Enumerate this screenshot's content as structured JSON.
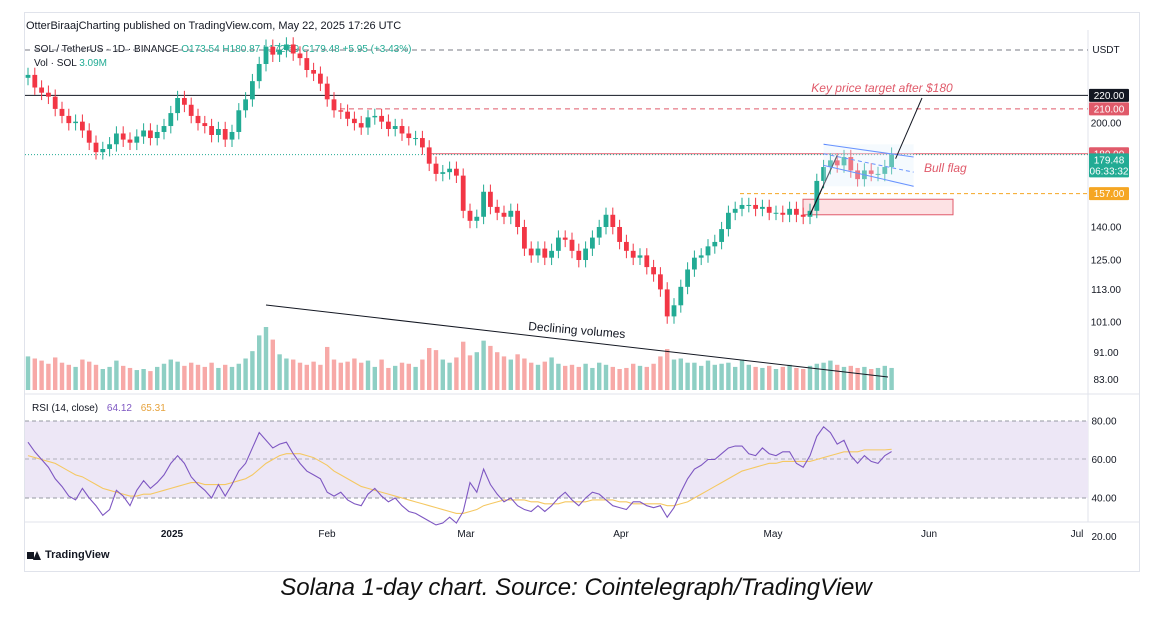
{
  "header": {
    "publisher_line": "OtterBiraajCharting published on TradingView.com, May 22, 2025 17:26 UTC",
    "symbol": "SOL / TetherUS · 1D · BINANCE",
    "ohlc": "O173.54 H180.87 L172.59 C179.48 +5.95 (+3.43%)",
    "vol_label": "Vol · SOL",
    "vol_value": "3.09M",
    "currency": "USDT"
  },
  "colors": {
    "up": "#22ab94",
    "down": "#f23645",
    "vol_up": "#8ecfc4",
    "vol_down": "#f7a9a7",
    "rsi_line": "#7e57c2",
    "rsi_ma": "#f5c862",
    "rsi_band": "#ede7f6",
    "target": "#e05a6a",
    "blue": "#2962ff"
  },
  "chart_data": [
    {
      "type": "candlestick",
      "title": "SOL / TetherUS · 1D · BINANCE",
      "y_axis_ticks": [
        "220.00",
        "210.00",
        "200.00",
        "180.00",
        "157.00",
        "140.00",
        "125.00",
        "113.00",
        "101.00",
        "91.00",
        "83.00"
      ],
      "x_axis_ticks": [
        "2025",
        "Feb",
        "Mar",
        "Apr",
        "May",
        "Jun",
        "Jul"
      ],
      "ylim": [
        80,
        240
      ],
      "y_scale": "log",
      "closes": [
        236,
        226,
        222,
        219,
        210,
        205,
        200,
        201,
        195,
        187,
        181,
        183,
        186,
        193,
        189,
        187,
        191,
        195,
        190,
        194,
        198,
        207,
        218,
        213,
        205,
        200,
        198,
        192,
        196,
        189,
        194,
        209,
        217,
        231,
        245,
        260,
        253,
        257,
        262,
        254,
        250,
        240,
        237,
        229,
        217,
        209,
        208,
        203,
        200,
        197,
        204,
        205,
        201,
        196,
        198,
        193,
        190,
        190,
        184,
        174,
        168,
        169,
        171,
        167,
        148,
        143,
        145,
        158,
        150,
        147,
        145,
        148,
        140,
        130,
        127,
        130,
        126,
        129,
        135,
        134,
        129,
        125,
        130,
        135,
        140,
        146,
        140,
        133,
        129,
        126,
        127,
        122,
        119,
        113,
        103,
        107,
        114,
        121,
        126,
        127,
        131,
        133,
        139,
        147,
        149,
        151,
        151,
        149,
        150,
        147,
        147,
        146,
        149,
        146,
        145,
        148,
        164,
        172,
        176,
        173,
        178,
        170,
        165,
        170,
        168,
        168,
        172,
        179.48
      ],
      "volume": [
        3.2,
        3.0,
        2.8,
        2.5,
        3.1,
        2.6,
        2.4,
        2.2,
        2.9,
        2.7,
        2.4,
        2.0,
        2.2,
        2.8,
        2.3,
        2.1,
        1.9,
        2.0,
        1.8,
        2.2,
        2.5,
        2.9,
        2.7,
        2.3,
        2.6,
        2.4,
        2.2,
        2.6,
        2.1,
        2.4,
        2.2,
        2.5,
        3.0,
        3.7,
        5.2,
        6.0,
        4.8,
        3.4,
        3.0,
        2.9,
        2.6,
        2.4,
        2.7,
        2.4,
        4.1,
        2.9,
        2.6,
        2.7,
        3.0,
        2.6,
        2.8,
        2.2,
        2.9,
        2.1,
        2.3,
        2.6,
        2.5,
        2.2,
        2.9,
        4.0,
        3.8,
        2.9,
        2.6,
        3.1,
        4.6,
        3.3,
        3.6,
        4.7,
        4.2,
        3.6,
        3.2,
        2.9,
        3.4,
        3.0,
        2.6,
        2.4,
        2.7,
        3.1,
        2.5,
        2.3,
        2.4,
        2.2,
        2.5,
        2.1,
        2.6,
        2.4,
        2.2,
        2.0,
        2.1,
        2.5,
        2.3,
        2.2,
        2.5,
        3.2,
        3.9,
        2.9,
        3.0,
        2.6,
        2.6,
        2.3,
        2.8,
        2.4,
        2.5,
        2.6,
        2.2,
        2.9,
        2.4,
        2.2,
        2.1,
        2.3,
        2.0,
        2.2,
        2.4,
        2.1,
        2.0,
        2.3,
        2.5,
        2.6,
        2.8,
        2.4,
        2.2,
        2.3,
        2.1,
        2.2,
        2.0,
        2.1,
        2.3,
        2.1
      ],
      "annotations": {
        "horizontal_level": "220.00",
        "target_text": "Key price target after $180",
        "flag_text": "Bull flag",
        "volume_text": "Declining volumes"
      },
      "price_tags": [
        {
          "label": "220.00",
          "value": 220,
          "color": "#131722"
        },
        {
          "label": "210.00",
          "value": 210,
          "color": "#e05a6a"
        },
        {
          "label": "180.00",
          "value": 180,
          "color": "#e05a6a"
        },
        {
          "label": "179.48",
          "value": 176,
          "color": "#22ab94",
          "sub": "06:33:32"
        },
        {
          "label": "157.00",
          "value": 157,
          "color": "#f5a623"
        }
      ]
    },
    {
      "type": "line",
      "title": "RSI (14, close)",
      "series": [
        {
          "name": "RSI (14, close)",
          "last": "64.12",
          "values": [
            69,
            64,
            60,
            56,
            50,
            46,
            41,
            39,
            45,
            40,
            36,
            31,
            34,
            44,
            41,
            36,
            44,
            49,
            45,
            48,
            52,
            58,
            62,
            58,
            51,
            47,
            44,
            40,
            47,
            41,
            47,
            54,
            58,
            66,
            74,
            70,
            66,
            68,
            69,
            63,
            58,
            54,
            52,
            50,
            43,
            41,
            43,
            39,
            37,
            36,
            42,
            45,
            41,
            38,
            40,
            36,
            33,
            32,
            30,
            28,
            26,
            27,
            30,
            27,
            33,
            48,
            43,
            55,
            47,
            42,
            38,
            40,
            36,
            34,
            33,
            36,
            33,
            36,
            40,
            43,
            39,
            36,
            40,
            43,
            42,
            39,
            36,
            35,
            34,
            38,
            38,
            36,
            35,
            36,
            30,
            35,
            43,
            50,
            55,
            57,
            60,
            60,
            63,
            66,
            67,
            67,
            63,
            62,
            66,
            63,
            62,
            64,
            64,
            58,
            56,
            62,
            72,
            77,
            74,
            68,
            70,
            62,
            58,
            62,
            59,
            58,
            62,
            64.12
          ]
        },
        {
          "name": "RSI MA",
          "last": "65.31",
          "values": [
            62,
            61,
            60,
            59,
            58,
            56,
            54,
            52,
            51,
            49,
            47,
            45,
            44,
            43,
            42,
            41,
            41,
            42,
            42,
            43,
            44,
            45,
            46,
            47,
            48,
            48,
            47,
            47,
            47,
            47,
            48,
            49,
            50,
            52,
            55,
            58,
            60,
            62,
            63,
            63,
            63,
            62,
            61,
            59,
            57,
            54,
            52,
            50,
            48,
            46,
            45,
            44,
            43,
            42,
            41,
            40,
            39,
            38,
            37,
            36,
            35,
            34,
            33,
            32,
            32,
            33,
            34,
            36,
            37,
            38,
            39,
            39,
            39,
            39,
            38,
            38,
            37,
            37,
            37,
            38,
            38,
            38,
            38,
            39,
            39,
            39,
            39,
            38,
            38,
            37,
            37,
            37,
            37,
            37,
            36,
            36,
            37,
            38,
            40,
            42,
            44,
            46,
            48,
            50,
            52,
            54,
            55,
            56,
            57,
            58,
            58,
            59,
            59,
            59,
            59,
            59,
            60,
            61,
            62,
            63,
            64,
            64,
            64,
            65,
            65,
            65,
            65,
            65.31
          ]
        }
      ],
      "y_axis_ticks": [
        "80.00",
        "60.00",
        "40.00",
        "20.00"
      ],
      "ylim": [
        20,
        80
      ]
    }
  ],
  "footer": {
    "brand": "TradingView",
    "caption": "Solana 1-day chart. Source: Cointelegraph/TradingView"
  }
}
